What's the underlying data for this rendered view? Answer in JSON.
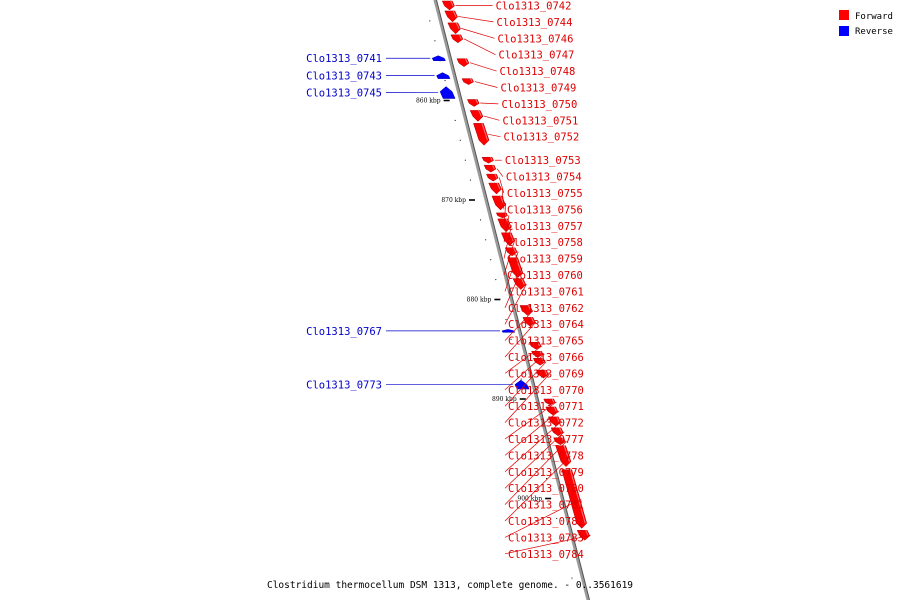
{
  "title": "Clostridium thermocellum DSM 1313, complete genome. - 0..3561619",
  "legend": {
    "forward": {
      "label": "Forward",
      "color": "#ff0000"
    },
    "reverse": {
      "label": "Reverse",
      "color": "#0000ff"
    }
  },
  "axis": {
    "unit": "kbp",
    "start_kbp": 850,
    "end_kbp": 910,
    "major_ticks": [
      {
        "kbp": 860,
        "label": "860 kbp"
      },
      {
        "kbp": 870,
        "label": "870 kbp"
      },
      {
        "kbp": 880,
        "label": "880 kbp"
      },
      {
        "kbp": 890,
        "label": "890 kbp"
      },
      {
        "kbp": 900,
        "label": "900 kbp"
      }
    ]
  },
  "forward_genes": [
    {
      "name": "Clo1313_0742",
      "start_kbp": 850.0,
      "end_kbp": 850.9
    },
    {
      "name": "Clo1313_0744",
      "start_kbp": 851.0,
      "end_kbp": 852.1
    },
    {
      "name": "Clo1313_0746",
      "start_kbp": 852.2,
      "end_kbp": 853.3
    },
    {
      "name": "Clo1313_0747",
      "start_kbp": 853.4,
      "end_kbp": 854.2
    },
    {
      "name": "Clo1313_0748",
      "start_kbp": 855.8,
      "end_kbp": 856.6
    },
    {
      "name": "Clo1313_0749",
      "start_kbp": 857.8,
      "end_kbp": 858.4
    },
    {
      "name": "Clo1313_0750",
      "start_kbp": 859.9,
      "end_kbp": 860.6
    },
    {
      "name": "Clo1313_0751",
      "start_kbp": 861.0,
      "end_kbp": 862.1
    },
    {
      "name": "Clo1313_0752",
      "start_kbp": 862.3,
      "end_kbp": 864.5
    },
    {
      "name": "Clo1313_0753",
      "start_kbp": 865.7,
      "end_kbp": 866.3
    },
    {
      "name": "Clo1313_0754",
      "start_kbp": 866.5,
      "end_kbp": 867.2
    },
    {
      "name": "Clo1313_0755",
      "start_kbp": 867.4,
      "end_kbp": 868.1
    },
    {
      "name": "Clo1313_0756",
      "start_kbp": 868.3,
      "end_kbp": 869.4
    },
    {
      "name": "Clo1313_0757",
      "start_kbp": 869.6,
      "end_kbp": 871.0
    },
    {
      "name": "Clo1313_0758",
      "start_kbp": 871.3,
      "end_kbp": 871.8
    },
    {
      "name": "Clo1313_0759",
      "start_kbp": 871.9,
      "end_kbp": 873.2
    },
    {
      "name": "Clo1313_0760",
      "start_kbp": 873.3,
      "end_kbp": 874.6
    },
    {
      "name": "Clo1313_0761",
      "start_kbp": 874.8,
      "end_kbp": 875.6
    },
    {
      "name": "Clo1313_0762",
      "start_kbp": 875.8,
      "end_kbp": 877.8
    },
    {
      "name": "Clo1313_0764",
      "start_kbp": 877.9,
      "end_kbp": 879.0
    },
    {
      "name": "Clo1313_0765",
      "start_kbp": 880.6,
      "end_kbp": 881.6
    },
    {
      "name": "Clo1313_0766",
      "start_kbp": 881.8,
      "end_kbp": 882.7
    },
    {
      "name": "Clo1313_0769",
      "start_kbp": 884.3,
      "end_kbp": 885.0
    },
    {
      "name": "Clo1313_0770",
      "start_kbp": 885.2,
      "end_kbp": 885.8
    },
    {
      "name": "Clo1313_0771",
      "start_kbp": 885.9,
      "end_kbp": 886.6
    },
    {
      "name": "Clo1313_0772",
      "start_kbp": 887.1,
      "end_kbp": 887.9
    },
    {
      "name": "Clo1313_0777",
      "start_kbp": 890.0,
      "end_kbp": 890.6
    },
    {
      "name": "Clo1313_0778",
      "start_kbp": 890.8,
      "end_kbp": 891.6
    },
    {
      "name": "Clo1313_0779",
      "start_kbp": 891.8,
      "end_kbp": 892.7
    },
    {
      "name": "Clo1313_0780",
      "start_kbp": 892.9,
      "end_kbp": 893.7
    },
    {
      "name": "Clo1313_0781",
      "start_kbp": 893.9,
      "end_kbp": 894.6
    },
    {
      "name": "Clo1313_0782",
      "start_kbp": 894.7,
      "end_kbp": 896.8
    },
    {
      "name": "Clo1313_0783",
      "start_kbp": 897.1,
      "end_kbp": 903.0
    },
    {
      "name": "Clo1313_0784",
      "start_kbp": 903.2,
      "end_kbp": 904.2
    }
  ],
  "reverse_genes": [
    {
      "name": "Clo1313_0741",
      "start_kbp": 855.5,
      "end_kbp": 856.0
    },
    {
      "name": "Clo1313_0743",
      "start_kbp": 857.2,
      "end_kbp": 857.8
    },
    {
      "name": "Clo1313_0745",
      "start_kbp": 858.6,
      "end_kbp": 859.8
    },
    {
      "name": "Clo1313_0767",
      "start_kbp": 883.0,
      "end_kbp": 883.3
    },
    {
      "name": "Clo1313_0773",
      "start_kbp": 888.1,
      "end_kbp": 889.0
    }
  ]
}
